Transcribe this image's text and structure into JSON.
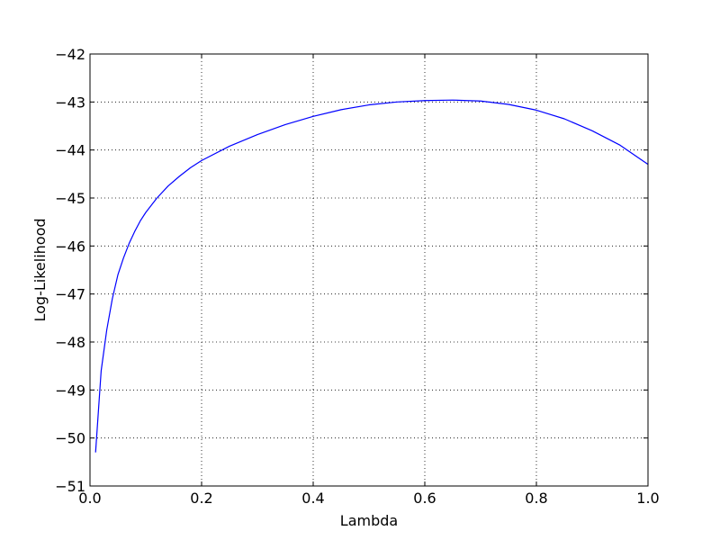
{
  "chart_data": {
    "type": "line",
    "title": "",
    "xlabel": "Lambda",
    "ylabel": "Log-Likelihood",
    "xlim": [
      0.0,
      1.0
    ],
    "ylim": [
      -51,
      -42
    ],
    "grid": true,
    "legend": "none",
    "x_ticks": [
      0.0,
      0.2,
      0.4,
      0.6,
      0.8,
      1.0
    ],
    "y_ticks": [
      -51,
      -50,
      -49,
      -48,
      -47,
      -46,
      -45,
      -44,
      -43,
      -42
    ],
    "x_tick_labels": [
      "0.0",
      "0.2",
      "0.4",
      "0.6",
      "0.8",
      "1.0"
    ],
    "y_tick_labels": [
      "−51",
      "−50",
      "−49",
      "−48",
      "−47",
      "−46",
      "−45",
      "−44",
      "−43",
      "−42"
    ],
    "series": [
      {
        "color": "#0000ff",
        "x": [
          0.01,
          0.02,
          0.03,
          0.04,
          0.05,
          0.06,
          0.07,
          0.08,
          0.09,
          0.1,
          0.12,
          0.14,
          0.16,
          0.18,
          0.2,
          0.25,
          0.3,
          0.35,
          0.4,
          0.45,
          0.5,
          0.55,
          0.6,
          0.65,
          0.7,
          0.75,
          0.8,
          0.85,
          0.9,
          0.95,
          1.0
        ],
        "y": [
          -50.3,
          -48.6,
          -47.75,
          -47.1,
          -46.6,
          -46.25,
          -45.95,
          -45.7,
          -45.48,
          -45.3,
          -45.0,
          -44.75,
          -44.55,
          -44.37,
          -44.22,
          -43.92,
          -43.68,
          -43.47,
          -43.3,
          -43.16,
          -43.06,
          -43.0,
          -42.97,
          -42.96,
          -42.98,
          -43.05,
          -43.17,
          -43.35,
          -43.6,
          -43.9,
          -44.3
        ]
      }
    ]
  }
}
